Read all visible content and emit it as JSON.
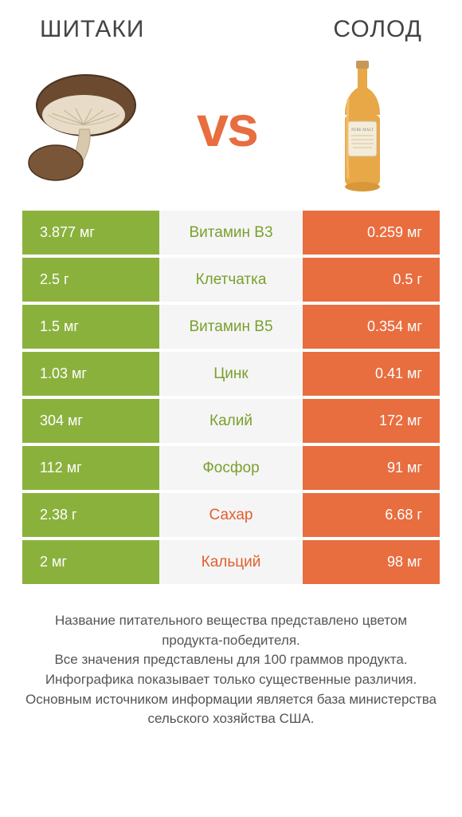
{
  "titles": {
    "left": "ШИТАКИ",
    "right": "СОЛОД"
  },
  "vs_label": "vs",
  "colors": {
    "green": "#8bb13d",
    "orange": "#e86d3f",
    "mid_bg": "#f5f5f5",
    "text_green": "#7aa02e",
    "text_orange": "#e05f2f"
  },
  "rows": [
    {
      "name": "Витамин B3",
      "left": "3.877 мг",
      "right": "0.259 мг",
      "winner": "left"
    },
    {
      "name": "Клетчатка",
      "left": "2.5 г",
      "right": "0.5 г",
      "winner": "left"
    },
    {
      "name": "Витамин B5",
      "left": "1.5 мг",
      "right": "0.354 мг",
      "winner": "left"
    },
    {
      "name": "Цинк",
      "left": "1.03 мг",
      "right": "0.41 мг",
      "winner": "left"
    },
    {
      "name": "Калий",
      "left": "304 мг",
      "right": "172 мг",
      "winner": "left"
    },
    {
      "name": "Фосфор",
      "left": "112 мг",
      "right": "91 мг",
      "winner": "left"
    },
    {
      "name": "Сахар",
      "left": "2.38 г",
      "right": "6.68 г",
      "winner": "right"
    },
    {
      "name": "Кальций",
      "left": "2 мг",
      "right": "98 мг",
      "winner": "right"
    }
  ],
  "footer": {
    "l1": "Название питательного вещества представлено цветом продукта-победителя.",
    "l2": "Все значения представлены для 100 граммов продукта.",
    "l3": "Инфографика показывает только существенные различия.",
    "l4": "Основным источником информации является база министерства сельского хозяйства США."
  }
}
